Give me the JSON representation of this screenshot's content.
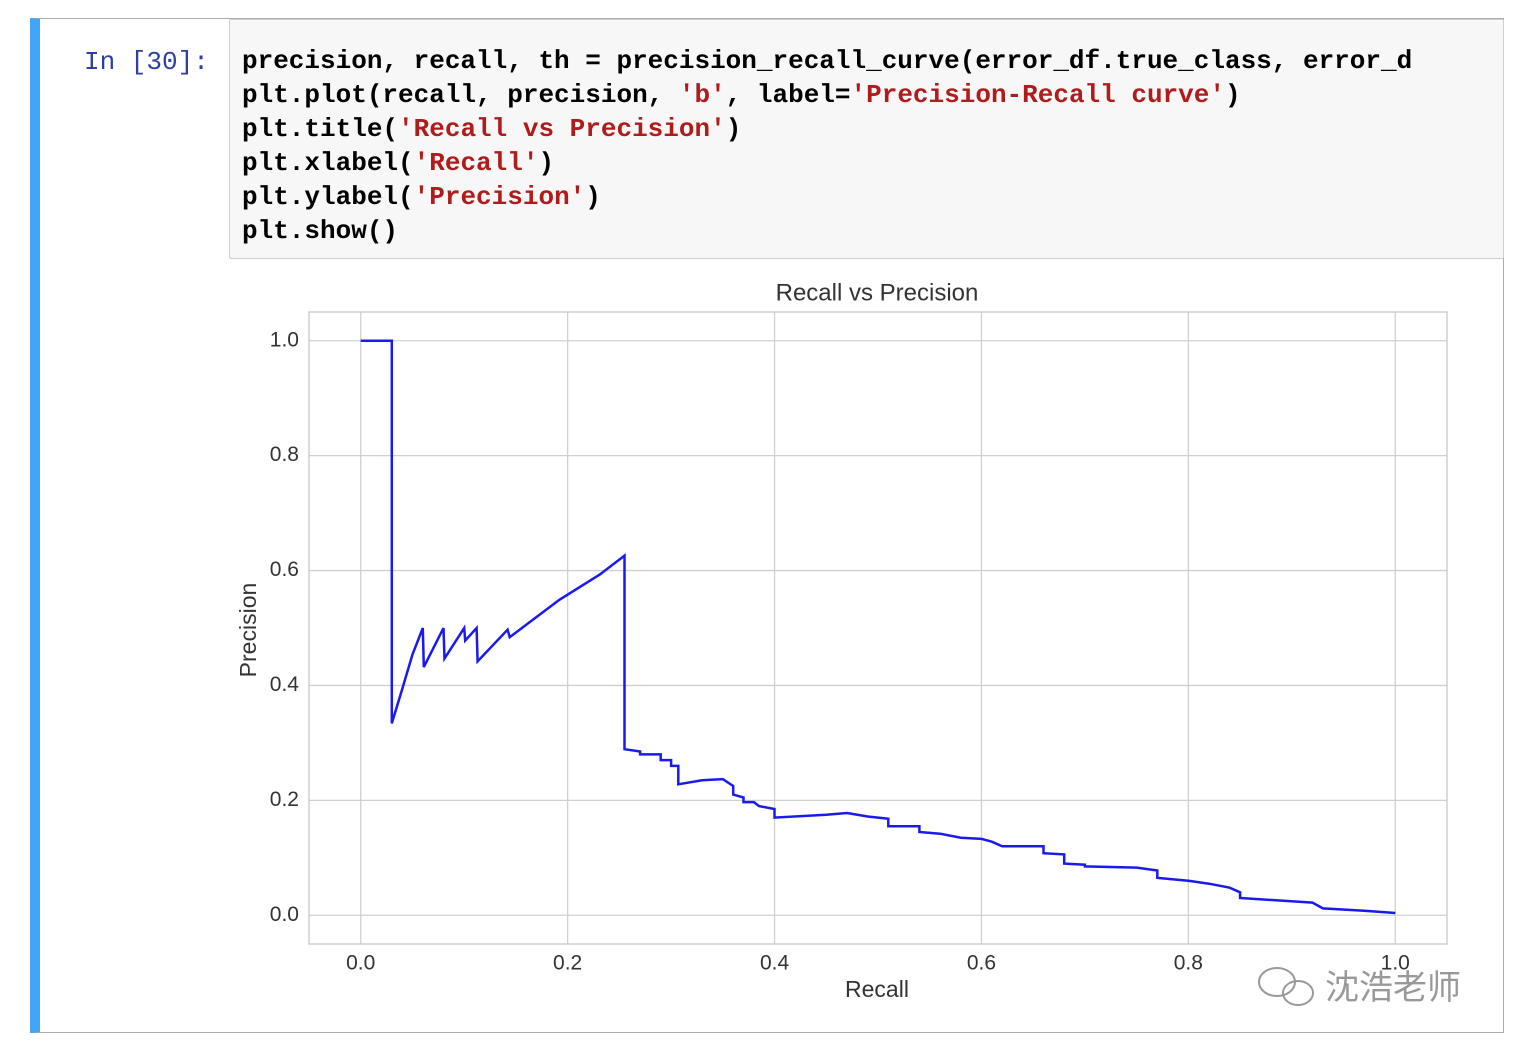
{
  "cell": {
    "prompt": "In [30]:",
    "code": [
      [
        "precision, recall, th = precision_recall_curve(error_df.true_class, error_d"
      ],
      [
        "plt.plot(recall, precision, ",
        "'b'",
        ", label=",
        "'Precision-Recall curve'",
        ")"
      ],
      [
        "plt.title(",
        "'Recall vs Precision'",
        ")"
      ],
      [
        "plt.xlabel(",
        "'Recall'",
        ")"
      ],
      [
        "plt.ylabel(",
        "'Precision'",
        ")"
      ],
      [
        "plt.show()"
      ]
    ]
  },
  "watermark": "沈浩老师",
  "chart_data": {
    "type": "line",
    "title": "Recall vs Precision",
    "x_label": "Recall",
    "y_label": "Precision",
    "x": [
      0,
      0.03,
      0.03,
      0.04,
      0.05,
      0.06,
      0.061,
      0.08,
      0.081,
      0.1,
      0.101,
      0.112,
      0.113,
      0.142,
      0.144,
      0.192,
      0.231,
      0.255,
      0.255,
      0.27,
      0.27,
      0.29,
      0.29,
      0.3,
      0.3,
      0.307,
      0.307,
      0.33,
      0.35,
      0.36,
      0.36,
      0.37,
      0.37,
      0.38,
      0.385,
      0.4,
      0.4,
      0.45,
      0.47,
      0.49,
      0.51,
      0.51,
      0.54,
      0.54,
      0.56,
      0.58,
      0.6,
      0.61,
      0.62,
      0.66,
      0.66,
      0.68,
      0.68,
      0.7,
      0.7,
      0.75,
      0.77,
      0.77,
      0.8,
      0.82,
      0.84,
      0.85,
      0.85,
      0.92,
      0.93,
      0.97,
      1.0
    ],
    "series": [
      {
        "color": "#1a1aee",
        "values": [
          1.0,
          1.0,
          0.334,
          0.393,
          0.454,
          0.5,
          0.432,
          0.5,
          0.447,
          0.5,
          0.478,
          0.5,
          0.442,
          0.497,
          0.484,
          0.549,
          0.593,
          0.626,
          0.289,
          0.285,
          0.28,
          0.28,
          0.27,
          0.27,
          0.26,
          0.26,
          0.228,
          0.235,
          0.237,
          0.225,
          0.21,
          0.205,
          0.197,
          0.197,
          0.19,
          0.185,
          0.17,
          0.175,
          0.178,
          0.172,
          0.168,
          0.155,
          0.155,
          0.145,
          0.142,
          0.135,
          0.133,
          0.128,
          0.12,
          0.12,
          0.108,
          0.106,
          0.09,
          0.088,
          0.085,
          0.083,
          0.078,
          0.065,
          0.06,
          0.055,
          0.048,
          0.04,
          0.03,
          0.022,
          0.012,
          0.008,
          0.004
        ]
      }
    ],
    "xlim": [
      -0.05,
      1.05
    ],
    "ylim": [
      -0.05,
      1.05
    ],
    "xticks": [
      {
        "value": 0,
        "label": "0.0"
      },
      0.2,
      0.4,
      0.6,
      0.8,
      {
        "value": 1,
        "label": "1.0"
      }
    ],
    "yticks": [
      {
        "value": 0,
        "label": "0.0"
      },
      0.2,
      0.4,
      0.6,
      0.8,
      {
        "value": 1,
        "label": "1.0"
      }
    ],
    "grid": true
  }
}
